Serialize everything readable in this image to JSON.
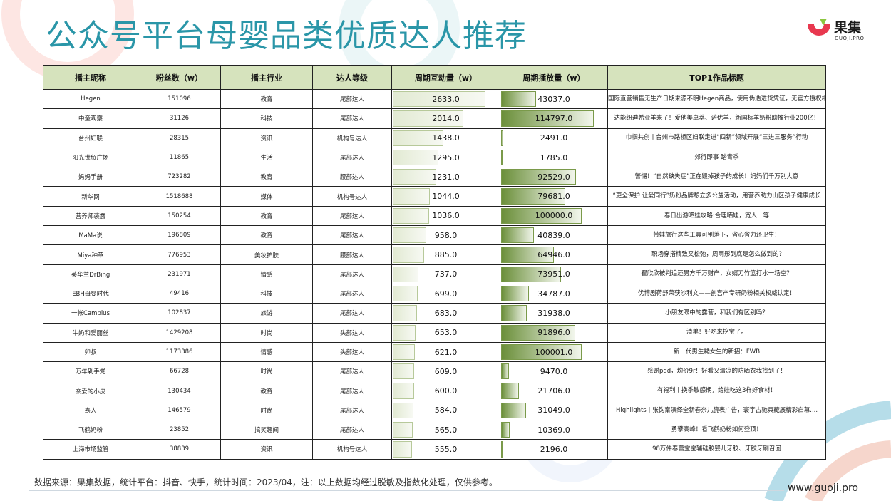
{
  "title": "公众号平台母婴品类优质达人推荐",
  "logo": {
    "name": "果集",
    "sub": "GUOJI.PRO"
  },
  "table": {
    "headers": [
      "播主昵称",
      "粉丝数（w）",
      "播主行业",
      "达人等级",
      "周期互动量（w）",
      "周期播放量（w）",
      "TOP1作品标题"
    ],
    "rows": [
      [
        "Hegen",
        "151096",
        "教育",
        "尾部达人",
        "2633.0",
        "43037.0",
        "国际直营销售无生产日期来源不明Hegen商品，使用伪造进货凭证，无官方授权相关事宜-为宝妈答疑"
      ],
      [
        "中童观察",
        "31126",
        "科技",
        "尾部达人",
        "2014.0",
        "114797.0",
        "达能纽迪希亚羊来了！爱他美卓萃、诺优羊，新国标羊奶粉助推行业200亿！"
      ],
      [
        "台州妇联",
        "28315",
        "资讯",
        "机构号达人",
        "1438.0",
        "2491.0",
        "巾帼共创丨台州市路桥区妇联走进“四新”领域开展“三进三服务”行动"
      ],
      [
        "阳光世贸广场",
        "11865",
        "生活",
        "尾部达人",
        "1295.0",
        "1785.0",
        "郊行即事 踏青季"
      ],
      [
        "妈妈手册",
        "723282",
        "教育",
        "腰部达人",
        "1231.0",
        "92529.0",
        "警惕！“自然缺失症”正在毁掉孩子的成长！妈妈们千万别大意"
      ],
      [
        "新华网",
        "1518688",
        "媒体",
        "机构号达人",
        "1044.0",
        "79681.0",
        "“更全保护 让爱同行”奶粉品牌憩立多公益活动，用营养助力山区孩子健康成长"
      ],
      [
        "营养师袭露",
        "150254",
        "教育",
        "尾部达人",
        "1036.0",
        "100000.0",
        "春日出游晒娃攻略:合理晒娃，宽人一等"
      ],
      [
        "MaMa说",
        "196809",
        "教育",
        "尾部达人",
        "958.0",
        "40839.0",
        "带娃旅行这些工具可别落下，省心省力还卫生！"
      ],
      [
        "Miya种草",
        "776953",
        "美妆护肤",
        "腰部达人",
        "885.0",
        "64946.0",
        "职场穿搭精致又松弛，周雨彤到底是怎么做到的?"
      ],
      [
        "英华兰DrBing",
        "231971",
        "情感",
        "尾部达人",
        "737.0",
        "73951.0",
        "翟欣欣被判追还男方千万财产，女婿刀竹篮打水一场空？"
      ],
      [
        "EBH母婴时代",
        "49416",
        "科技",
        "尾部达人",
        "699.0",
        "34787.0",
        "优博剧荷舒荣获沙利文——剖宫产专研奶粉相关权威认定！"
      ],
      [
        "一帐Camplus",
        "102837",
        "旅游",
        "尾部达人",
        "683.0",
        "31938.0",
        "小朋友眼中的露营，和我们有区别吗？"
      ],
      [
        "牛奶和爱丽丝",
        "1429208",
        "时尚",
        "头部达人",
        "653.0",
        "91896.0",
        "清单！好吃来挖宝了。"
      ],
      [
        "卯叔",
        "1173386",
        "情感",
        "头部达人",
        "621.0",
        "100001.0",
        "新一代男生糙女生的新招：FWB"
      ],
      [
        "万年剁手党",
        "66728",
        "时尚",
        "尾部达人",
        "609.0",
        "9470.0",
        "感谢pdd，均价9r！好看又清凉的防晒衣我找到了！"
      ],
      [
        "亲爱的小皮",
        "130434",
        "教育",
        "尾部达人",
        "600.0",
        "21706.0",
        "有福利丨换季敏感期，给娃吃这3样好食材！"
      ],
      [
        "嘉人",
        "146579",
        "时尚",
        "尾部达人",
        "584.0",
        "31049.0",
        "Highlights丨张钧甯演绎全新春奈儿腕表广告，寰宇古驰具藏展精彩启幕...."
      ],
      [
        "飞鹤奶粉",
        "23852",
        "搞笑趣闻",
        "尾部达人",
        "565.0",
        "10369.0",
        "勇攀高峰！看飞鹤奶粉如何登顶！"
      ],
      [
        "上海市场监管",
        "38839",
        "资讯",
        "机构号达人",
        "555.0",
        "2196.0",
        "98万件春蕾宝宝辅硅胶婴儿牙胶、牙胶牙刷召回"
      ]
    ]
  },
  "footer": "数据来源：果集数据，统计平台：抖音、快手，统计时间：2023/04，注：以上数据均经过脱敏及指数化处理，仅供参考。",
  "site": "www.guoji.pro",
  "colors": {
    "title": "#2a96a8",
    "header_bg": "#d6e3bd",
    "bar_dark": "#6b8f3a",
    "bar_light": "#f2f6ec",
    "logo_red": "#e8384f",
    "logo_green": "#8cc63f"
  }
}
